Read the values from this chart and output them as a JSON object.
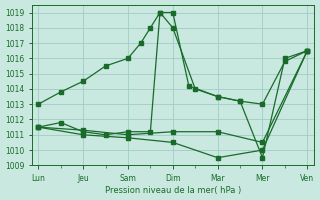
{
  "background_color": "#c8e8e0",
  "grid_color": "#a0ccc4",
  "line_color": "#1a6b2a",
  "xlabel": "Pression niveau de la mer( hPa )",
  "ylim": [
    1009,
    1019.5
  ],
  "yticks": [
    1009,
    1010,
    1011,
    1012,
    1013,
    1014,
    1015,
    1016,
    1017,
    1018,
    1019
  ],
  "x_labels": [
    "Lun",
    "Jeu",
    "Sam",
    "Dim",
    "Mar",
    "Mer",
    "Ven"
  ],
  "x_positions": [
    0,
    14,
    28,
    42,
    56,
    70,
    84
  ],
  "x_minor_positions": [
    0,
    7,
    14,
    21,
    28,
    35,
    42,
    49,
    56,
    63,
    70,
    77,
    84
  ],
  "series": [
    {
      "x": [
        0,
        7,
        14,
        21,
        28,
        32,
        35,
        38,
        42,
        47,
        56,
        63,
        70,
        77,
        84
      ],
      "y": [
        1013.0,
        1013.8,
        1014.5,
        1015.5,
        1016.0,
        1017.0,
        1018.0,
        1019.0,
        1019.0,
        1014.2,
        1013.5,
        1013.2,
        1013.0,
        1015.8,
        1016.5
      ]
    },
    {
      "x": [
        0,
        7,
        14,
        21,
        28,
        35,
        38,
        42,
        49,
        56,
        63,
        70,
        77,
        84
      ],
      "y": [
        1011.5,
        1011.8,
        1011.2,
        1011.0,
        1011.2,
        1011.2,
        1019.0,
        1018.0,
        1014.0,
        1013.5,
        1013.2,
        1009.5,
        1016.0,
        1016.5
      ]
    },
    {
      "x": [
        0,
        14,
        28,
        42,
        56,
        70,
        84
      ],
      "y": [
        1011.5,
        1011.3,
        1011.0,
        1011.2,
        1011.2,
        1010.5,
        1016.5
      ]
    },
    {
      "x": [
        0,
        14,
        28,
        42,
        56,
        70,
        84
      ],
      "y": [
        1011.5,
        1011.0,
        1010.8,
        1010.5,
        1009.5,
        1010.0,
        1016.5
      ]
    }
  ]
}
